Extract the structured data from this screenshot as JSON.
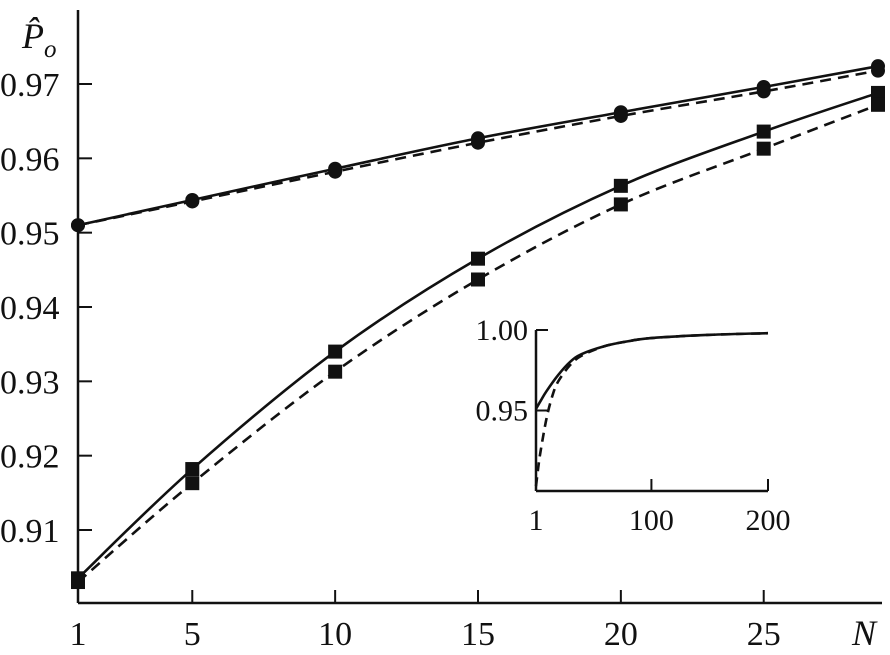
{
  "chart_data": [
    {
      "type": "line",
      "ylabel": "P̂",
      "ylabel_subscript": "o",
      "xlabel": "N",
      "x_tick_labels": [
        "1",
        "5",
        "10",
        "15",
        "20",
        "25"
      ],
      "y_tick_labels": [
        "0.91",
        "0.92",
        "0.93",
        "0.94",
        "0.95",
        "0.96",
        "0.97"
      ],
      "xlim": [
        1,
        29
      ],
      "ylim": [
        0.9,
        0.98
      ],
      "grid": false,
      "series": [
        {
          "style": "solid",
          "marker": "circle",
          "x": [
            1,
            5,
            10,
            15,
            20,
            25,
            29
          ],
          "values": [
            0.951,
            0.9544,
            0.9586,
            0.9627,
            0.9662,
            0.9696,
            0.9724
          ]
        },
        {
          "style": "dashed",
          "marker": "circle",
          "x": [
            1,
            5,
            10,
            15,
            20,
            25,
            29
          ],
          "values": [
            0.951,
            0.9542,
            0.9582,
            0.9621,
            0.9657,
            0.969,
            0.9718
          ]
        },
        {
          "style": "solid",
          "marker": "square",
          "x": [
            1,
            5,
            10,
            15,
            20,
            25,
            29
          ],
          "values": [
            0.9035,
            0.9182,
            0.934,
            0.9465,
            0.9563,
            0.9636,
            0.9688
          ]
        },
        {
          "style": "dashed",
          "marker": "square",
          "x": [
            1,
            5,
            10,
            15,
            20,
            25,
            29
          ],
          "values": [
            0.903,
            0.9163,
            0.9313,
            0.9437,
            0.9538,
            0.9613,
            0.9672
          ]
        }
      ]
    },
    {
      "type": "line",
      "inset": true,
      "x_tick_labels": [
        "1",
        "100",
        "200"
      ],
      "y_tick_labels": [
        "0.95",
        "1.00"
      ],
      "xlim": [
        1,
        200
      ],
      "ylim": [
        0.9,
        1.0
      ],
      "grid": false,
      "series": [
        {
          "style": "solid",
          "x": [
            1,
            5,
            10,
            20,
            30,
            40,
            60,
            80,
            100,
            150,
            200
          ],
          "values": [
            0.951,
            0.956,
            0.962,
            0.972,
            0.98,
            0.985,
            0.99,
            0.993,
            0.995,
            0.997,
            0.998
          ]
        },
        {
          "style": "dashed",
          "x": [
            1,
            3,
            5,
            10,
            15,
            20,
            30,
            40,
            60,
            80,
            100,
            150,
            200
          ],
          "values": [
            0.903,
            0.915,
            0.925,
            0.945,
            0.959,
            0.968,
            0.978,
            0.984,
            0.99,
            0.993,
            0.995,
            0.997,
            0.998
          ]
        }
      ]
    }
  ]
}
